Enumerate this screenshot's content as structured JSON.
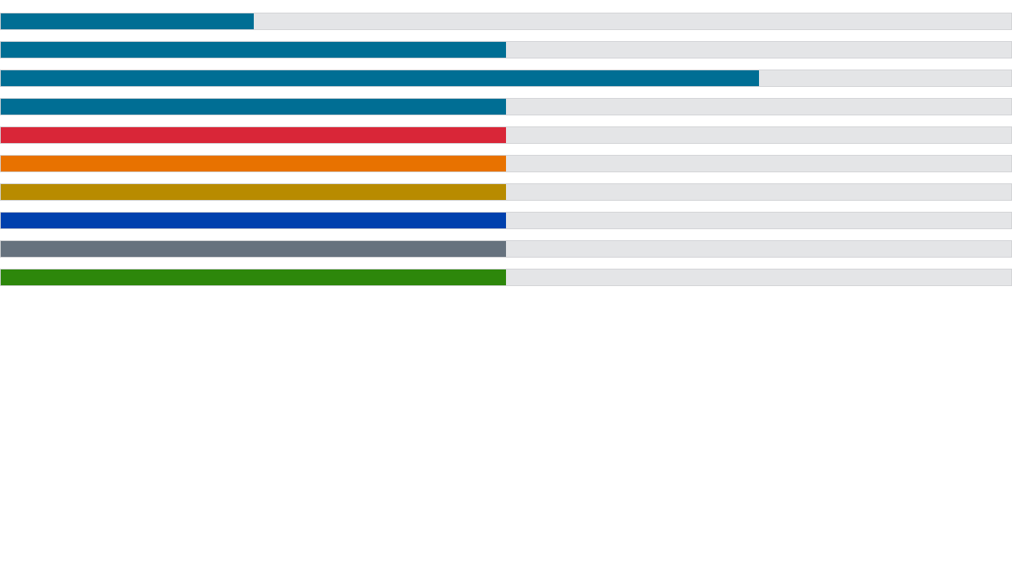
{
  "progress_bars": [
    {
      "value": 0.25,
      "color": "#006e94"
    },
    {
      "value": 0.5,
      "color": "#006e94"
    },
    {
      "value": 0.75,
      "color": "#006e94"
    },
    {
      "value": 0.5,
      "color": "#006e94"
    },
    {
      "value": 0.5,
      "color": "#d92638"
    },
    {
      "value": 0.5,
      "color": "#e87200"
    },
    {
      "value": 0.5,
      "color": "#b88b00"
    },
    {
      "value": 0.5,
      "color": "#0041ad"
    },
    {
      "value": 0.5,
      "color": "#66727e"
    },
    {
      "value": 0.5,
      "color": "#2d870b"
    }
  ]
}
